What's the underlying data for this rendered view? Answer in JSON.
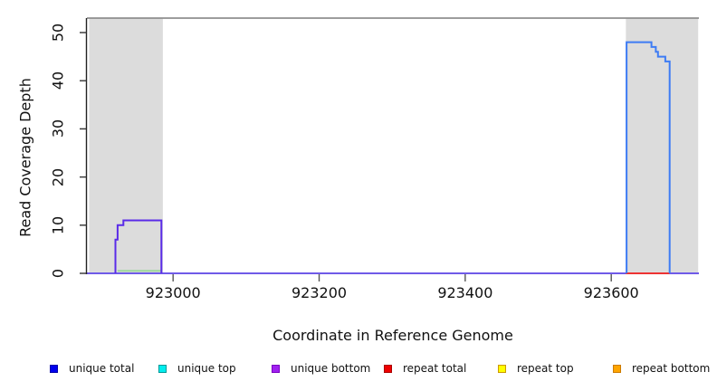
{
  "chart_data": {
    "type": "line",
    "style": "step-coverage-plot",
    "xlabel": "Coordinate in Reference Genome",
    "ylabel": "Read Coverage Depth",
    "xlim": [
      922882,
      923720
    ],
    "ylim": [
      0,
      53
    ],
    "x_ticks": [
      "923000",
      "923200",
      "923400",
      "923600"
    ],
    "x_tick_values": [
      923000,
      923200,
      923400,
      923600
    ],
    "y_ticks": [
      "0",
      "10",
      "20",
      "30",
      "40",
      "50"
    ],
    "y_tick_values": [
      0,
      10,
      20,
      30,
      40,
      50
    ],
    "grid": "off",
    "shaded_regions": [
      {
        "name": "left-gray-band",
        "x_start": 922885,
        "x_end": 922986,
        "color": "#dcdcdc"
      },
      {
        "name": "right-gray-band",
        "x_start": 923620,
        "x_end": 923719,
        "color": "#dcdcdc"
      }
    ],
    "reference_line": {
      "y": 53,
      "color": "#8f8f8f",
      "width": 1.8
    },
    "series": [
      {
        "name": "zero-coverage-baseline",
        "color": "#6f5ae8",
        "width": 2,
        "points": [
          [
            922882,
            0
          ],
          [
            923720,
            0
          ]
        ]
      },
      {
        "name": "repeat-total-baseline-segment",
        "color": "#ee3333",
        "width": 2,
        "points": [
          [
            923620,
            0
          ],
          [
            923680,
            0
          ]
        ]
      },
      {
        "name": "green-baseline-segment",
        "color": "#9cd69c",
        "width": 2,
        "points": [
          [
            922924,
            0.5
          ],
          [
            922983,
            0.5
          ]
        ]
      },
      {
        "name": "unique-bottom-left-peak",
        "color": "#5a2be8",
        "width": 2,
        "points": [
          [
            922921,
            0
          ],
          [
            922921,
            7
          ],
          [
            922924,
            7
          ],
          [
            922924,
            10
          ],
          [
            922932,
            10
          ],
          [
            922932,
            11
          ],
          [
            922984,
            11
          ],
          [
            922984,
            0
          ]
        ]
      },
      {
        "name": "unique-total-right-peak",
        "color": "#3e7cf4",
        "width": 2,
        "points": [
          [
            923621,
            0
          ],
          [
            923621,
            48
          ],
          [
            923655,
            48
          ],
          [
            923655,
            47
          ],
          [
            923661,
            47
          ],
          [
            923661,
            46
          ],
          [
            923664,
            46
          ],
          [
            923664,
            45
          ],
          [
            923674,
            45
          ],
          [
            923674,
            44
          ],
          [
            923680,
            44
          ],
          [
            923680,
            0
          ]
        ]
      }
    ],
    "legend_position": "bottom",
    "legend": [
      {
        "label": "unique total",
        "color": "#0000ee",
        "border": "#0000aa"
      },
      {
        "label": "unique top",
        "color": "#00eeee",
        "border": "#009999"
      },
      {
        "label": "unique bottom",
        "color": "#a020f0",
        "border": "#7a00c2"
      },
      {
        "label": "repeat total",
        "color": "#ee0000",
        "border": "#aa0000"
      },
      {
        "label": "repeat top",
        "color": "#ffff00",
        "border": "#cc9900"
      },
      {
        "label": "repeat bottom",
        "color": "#ffa500",
        "border": "#cc7a00"
      }
    ]
  }
}
